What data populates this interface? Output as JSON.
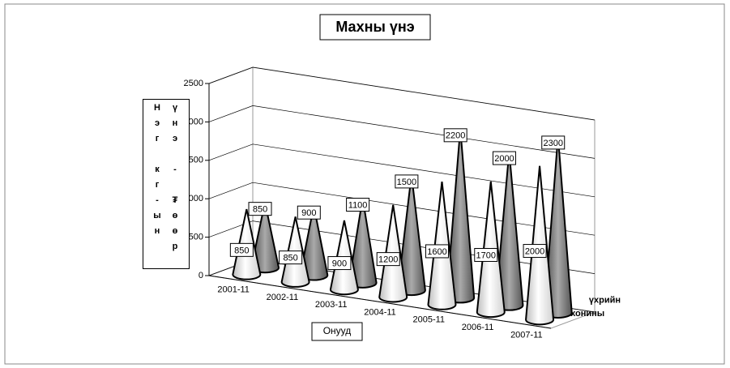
{
  "chart_data": {
    "type": "cone3d",
    "title": "Махны үнэ",
    "y_label": "Нэг кг-ын үнэ - ₮өөр",
    "x_label": "Онууд",
    "categories": [
      "2001-11",
      "2002-11",
      "2003-11",
      "2004-11",
      "2005-11",
      "2006-11",
      "2007-11"
    ],
    "series": [
      {
        "name": "үхрийн",
        "color": "#666666",
        "values": [
          850,
          900,
          1100,
          1500,
          2200,
          2000,
          2300
        ]
      },
      {
        "name": "хонины",
        "color": "#f2f2f2",
        "values": [
          850,
          850,
          900,
          1200,
          1600,
          1700,
          2000
        ]
      }
    ],
    "ylim": [
      0,
      2500
    ],
    "yticks": [
      0,
      500,
      1000,
      1500,
      2000,
      2500
    ],
    "grid": true
  }
}
